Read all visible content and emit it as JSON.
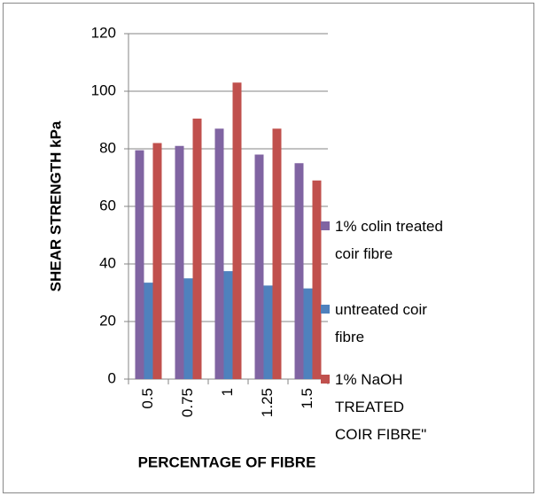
{
  "chart_data": {
    "type": "bar",
    "xlabel": "PERCENTAGE OF FIBRE",
    "ylabel": "SHEAR STRENGTH kPa",
    "categories": [
      "0.5",
      "0.75",
      "1",
      "1.25",
      "1.5"
    ],
    "series": [
      {
        "name": "1% colin treated coir fibre",
        "color": "#8064a2",
        "values": [
          79.5,
          81,
          87,
          78,
          75
        ]
      },
      {
        "name": "untreated coir fibre",
        "color": "#4f81bd",
        "values": [
          33.5,
          35,
          37.5,
          32.5,
          31.5
        ]
      },
      {
        "name": "1% NaOH TREATED COIR FIBRE\"",
        "color": "#c0504d",
        "values": [
          82,
          90.5,
          103,
          87,
          69
        ]
      }
    ],
    "ylim": [
      0,
      120
    ],
    "yticks": [
      0,
      20,
      40,
      60,
      80,
      100,
      120
    ],
    "grid": true,
    "legend": "right"
  }
}
